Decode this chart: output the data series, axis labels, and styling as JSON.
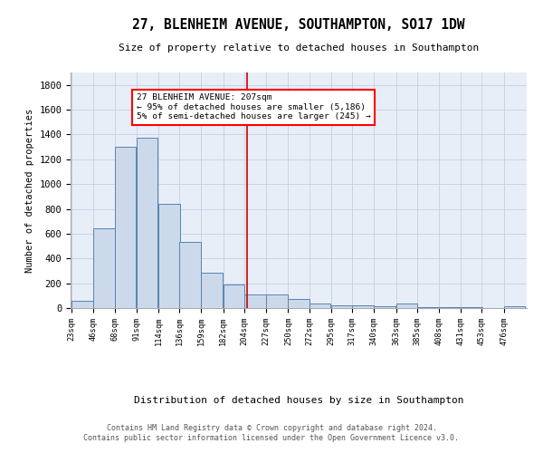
{
  "title": "27, BLENHEIM AVENUE, SOUTHAMPTON, SO17 1DW",
  "subtitle": "Size of property relative to detached houses in Southampton",
  "xlabel": "Distribution of detached houses by size in Southampton",
  "ylabel": "Number of detached properties",
  "bar_color": "#ccd9ea",
  "bar_edge_color": "#5585b5",
  "grid_color": "#c5cfe0",
  "bg_color": "#e8eef8",
  "annotation_line_color": "#cc0000",
  "annotation_text_lines": [
    "27 BLENHEIM AVENUE: 207sqm",
    "← 95% of detached houses are smaller (5,186)",
    "5% of semi-detached houses are larger (245) →"
  ],
  "categories": [
    "23sqm",
    "46sqm",
    "68sqm",
    "91sqm",
    "114sqm",
    "136sqm",
    "159sqm",
    "182sqm",
    "204sqm",
    "227sqm",
    "250sqm",
    "272sqm",
    "295sqm",
    "317sqm",
    "340sqm",
    "363sqm",
    "385sqm",
    "408sqm",
    "431sqm",
    "453sqm",
    "476sqm"
  ],
  "bin_starts": [
    23,
    46,
    68,
    91,
    114,
    136,
    159,
    182,
    204,
    227,
    250,
    272,
    295,
    317,
    340,
    363,
    385,
    408,
    431,
    453,
    476
  ],
  "bar_heights": [
    55,
    640,
    1300,
    1375,
    840,
    530,
    285,
    190,
    110,
    110,
    70,
    38,
    25,
    25,
    15,
    35,
    10,
    10,
    5,
    3,
    15
  ],
  "ylim": [
    0,
    1800
  ],
  "yticks": [
    0,
    200,
    400,
    600,
    800,
    1000,
    1200,
    1400,
    1600,
    1800
  ],
  "footer_line1": "Contains HM Land Registry data © Crown copyright and database right 2024.",
  "footer_line2": "Contains public sector information licensed under the Open Government Licence v3.0."
}
